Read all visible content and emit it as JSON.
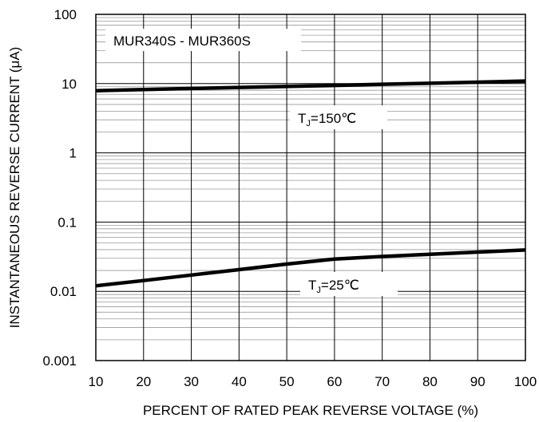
{
  "chart_data": {
    "type": "line",
    "title": "",
    "xlabel": "PERCENT OF RATED PEAK REVERSE VOLTAGE (%)",
    "ylabel": "INSTANTANEOUS REVERSE CURRENT (μA)",
    "xlim": [
      10,
      100
    ],
    "ylim": [
      0.001,
      100
    ],
    "yscale": "log",
    "grid": true,
    "x_ticks": [
      "10",
      "20",
      "30",
      "40",
      "50",
      "60",
      "70",
      "80",
      "90",
      "100"
    ],
    "y_ticks": [
      "100",
      "10",
      "1",
      "0.1",
      "0.01",
      "0.001"
    ],
    "box_label": "MUR340S - MUR360S",
    "series": [
      {
        "name": "TJ=150℃",
        "label_main": "T",
        "label_sub": "J",
        "label_rest": "=150℃",
        "x": [
          10,
          20,
          30,
          40,
          50,
          60,
          70,
          80,
          90,
          100
        ],
        "y": [
          7.9,
          8.2,
          8.5,
          8.8,
          9.1,
          9.4,
          9.8,
          10.1,
          10.5,
          10.9
        ]
      },
      {
        "name": "TJ=25℃",
        "label_main": "T",
        "label_sub": "J",
        "label_rest": "=25℃",
        "x": [
          10,
          20,
          30,
          40,
          50,
          60,
          70,
          80,
          90,
          100
        ],
        "y": [
          0.012,
          0.0143,
          0.0172,
          0.0206,
          0.0248,
          0.0293,
          0.0319,
          0.0342,
          0.0369,
          0.0395
        ]
      }
    ]
  }
}
